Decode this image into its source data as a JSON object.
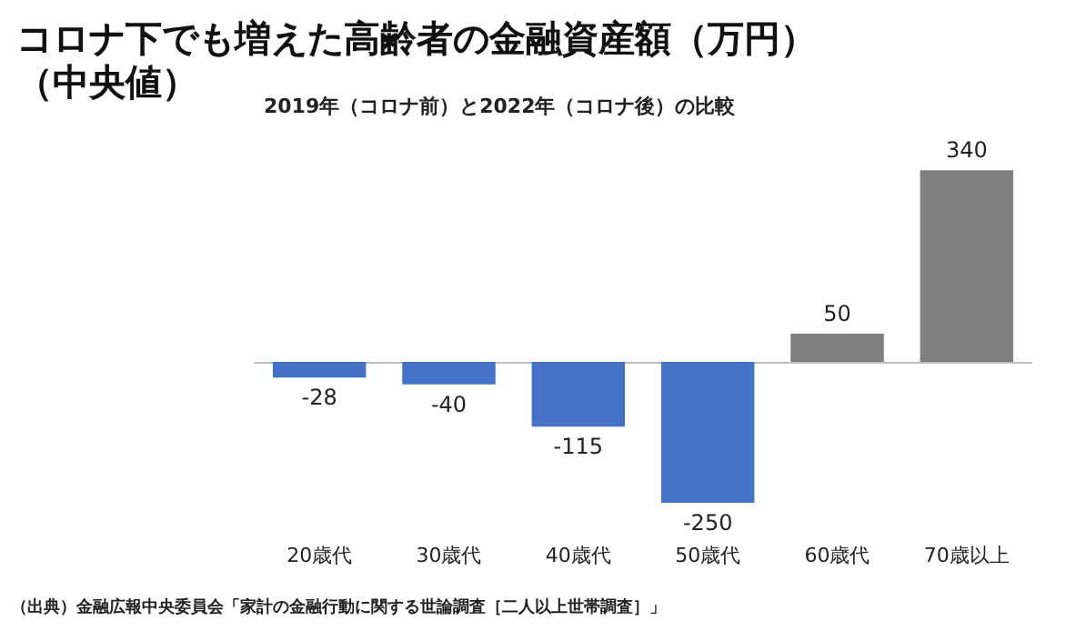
{
  "chart_data": {
    "type": "bar",
    "title": "コロナ下でも増えた高齢者の金融資産額（万円）（中央値）",
    "subtitle": "2019年（コロナ前）と2022年（コロナ後）の比較",
    "categories": [
      "20歳代",
      "30歳代",
      "40歳代",
      "50歳代",
      "60歳代",
      "70歳以上"
    ],
    "values": [
      -28,
      -40,
      -115,
      -250,
      50,
      340
    ],
    "colors": [
      "#4472c4",
      "#4472c4",
      "#4472c4",
      "#4472c4",
      "#7f7f7f",
      "#7f7f7f"
    ],
    "data_labels": true,
    "annotations": [
      "（出典）金融広報中央委員会「家計の金融行動に関する世論調査［二人以上世帯調査］」"
    ]
  }
}
